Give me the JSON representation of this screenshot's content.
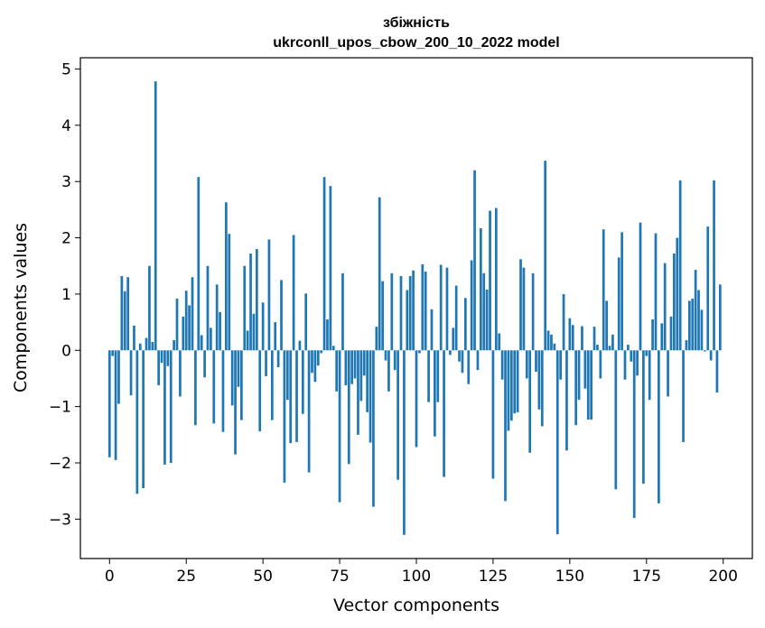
{
  "chart_data": {
    "type": "bar",
    "title": "збіжність",
    "subtitle": "ukrconll_upos_cbow_200_10_2022 model",
    "xlabel": "Vector components",
    "ylabel": "Components values",
    "xlim": [
      -9.5,
      209.5
    ],
    "ylim": [
      -3.7,
      5.2
    ],
    "xticks": [
      0,
      25,
      50,
      75,
      100,
      125,
      150,
      175,
      200
    ],
    "yticks": [
      -3,
      -2,
      -1,
      0,
      1,
      2,
      3,
      4,
      5
    ],
    "grid": false,
    "bar_color": "#1f77b4",
    "x": [
      0,
      1,
      2,
      3,
      4,
      5,
      6,
      7,
      8,
      9,
      10,
      11,
      12,
      13,
      14,
      15,
      16,
      17,
      18,
      19,
      20,
      21,
      22,
      23,
      24,
      25,
      26,
      27,
      28,
      29,
      30,
      31,
      32,
      33,
      34,
      35,
      36,
      37,
      38,
      39,
      40,
      41,
      42,
      43,
      44,
      45,
      46,
      47,
      48,
      49,
      50,
      51,
      52,
      53,
      54,
      55,
      56,
      57,
      58,
      59,
      60,
      61,
      62,
      63,
      64,
      65,
      66,
      67,
      68,
      69,
      70,
      71,
      72,
      73,
      74,
      75,
      76,
      77,
      78,
      79,
      80,
      81,
      82,
      83,
      84,
      85,
      86,
      87,
      88,
      89,
      90,
      91,
      92,
      93,
      94,
      95,
      96,
      97,
      98,
      99,
      100,
      101,
      102,
      103,
      104,
      105,
      106,
      107,
      108,
      109,
      110,
      111,
      112,
      113,
      114,
      115,
      116,
      117,
      118,
      119,
      120,
      121,
      122,
      123,
      124,
      125,
      126,
      127,
      128,
      129,
      130,
      131,
      132,
      133,
      134,
      135,
      136,
      137,
      138,
      139,
      140,
      141,
      142,
      143,
      144,
      145,
      146,
      147,
      148,
      149,
      150,
      151,
      152,
      153,
      154,
      155,
      156,
      157,
      158,
      159,
      160,
      161,
      162,
      163,
      164,
      165,
      166,
      167,
      168,
      169,
      170,
      171,
      172,
      173,
      174,
      175,
      176,
      177,
      178,
      179,
      180,
      181,
      182,
      183,
      184,
      185,
      186,
      187,
      188,
      189,
      190,
      191,
      192,
      193,
      194,
      195,
      196,
      197,
      198,
      199
    ],
    "values": [
      -1.9,
      -0.1,
      -1.95,
      -0.95,
      1.32,
      1.05,
      1.3,
      -0.8,
      0.44,
      -2.55,
      0.12,
      -2.45,
      0.22,
      1.5,
      0.15,
      4.78,
      -0.62,
      -0.22,
      -2.03,
      -0.28,
      -2.0,
      0.18,
      0.92,
      -0.82,
      0.6,
      1.06,
      0.8,
      1.3,
      -1.33,
      3.08,
      0.27,
      -0.48,
      1.5,
      0.4,
      -1.3,
      1.17,
      0.68,
      -1.45,
      2.63,
      2.07,
      -0.98,
      -1.85,
      -0.65,
      -1.24,
      1.5,
      0.35,
      1.72,
      0.65,
      1.8,
      -1.44,
      0.85,
      -0.46,
      1.97,
      -1.24,
      0.5,
      -0.3,
      1.25,
      -2.35,
      -0.88,
      -1.65,
      2.05,
      -1.63,
      0.17,
      -1.13,
      1.01,
      -2.17,
      -0.4,
      -0.56,
      -0.27,
      -0.05,
      3.08,
      0.55,
      2.92,
      0.08,
      -0.73,
      -2.7,
      1.37,
      -0.62,
      -2.02,
      -0.6,
      -0.5,
      -1.5,
      -0.9,
      -0.45,
      -1.1,
      -1.64,
      -2.78,
      0.42,
      2.72,
      1.23,
      -0.18,
      -0.73,
      1.37,
      -0.35,
      -2.3,
      1.32,
      -3.28,
      1.07,
      1.32,
      1.42,
      -1.72,
      -0.05,
      1.53,
      1.4,
      -0.92,
      0.73,
      -1.53,
      -0.92,
      1.52,
      -2.25,
      1.47,
      -0.08,
      0.4,
      1.15,
      -0.2,
      -0.4,
      0.93,
      -0.6,
      1.6,
      3.2,
      -0.35,
      2.17,
      1.37,
      1.08,
      2.48,
      -2.28,
      2.53,
      0.3,
      -0.52,
      -2.68,
      -1.43,
      -1.25,
      -1.12,
      -1.1,
      1.62,
      1.47,
      -0.5,
      -1.82,
      1.37,
      -0.38,
      -1.05,
      -1.35,
      3.37,
      0.35,
      0.28,
      0.12,
      -3.27,
      -0.52,
      1.0,
      -1.78,
      0.57,
      0.45,
      -1.33,
      -0.88,
      0.43,
      -0.68,
      -1.23,
      -1.23,
      0.42,
      0.1,
      -0.5,
      2.15,
      0.88,
      0.08,
      0.28,
      -2.47,
      1.65,
      2.1,
      -0.52,
      0.1,
      -0.2,
      -2.98,
      -0.45,
      2.27,
      -2.37,
      -0.1,
      -0.88,
      0.55,
      2.08,
      -2.72,
      0.48,
      1.55,
      -0.82,
      0.6,
      1.72,
      2.0,
      3.02,
      -1.63,
      0.18,
      0.88,
      0.92,
      1.43,
      1.07,
      0.72,
      -0.02,
      2.2,
      -0.18,
      3.02,
      -0.75,
      1.17
    ]
  }
}
